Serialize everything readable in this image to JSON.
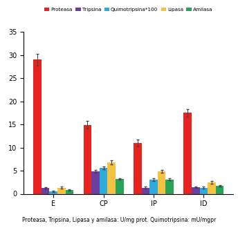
{
  "chart_data": {
    "type": "bar",
    "categories": [
      "E",
      "CP",
      "IP",
      "ID"
    ],
    "series": [
      {
        "name": "Proteasa",
        "color": "#e8231f",
        "values": [
          29.0,
          14.9,
          11.0,
          17.5
        ],
        "errors": [
          1.3,
          0.8,
          0.8,
          0.8
        ]
      },
      {
        "name": "Tripsina",
        "color": "#6a3fa0",
        "values": [
          1.2,
          4.9,
          1.3,
          1.4
        ],
        "errors": [
          0.2,
          0.3,
          0.2,
          0.2
        ]
      },
      {
        "name": "Quimotripsina*100",
        "color": "#2eaadc",
        "values": [
          0.5,
          5.6,
          3.1,
          1.3
        ],
        "errors": [
          0.1,
          0.3,
          0.3,
          0.2
        ]
      },
      {
        "name": "Lipasa",
        "color": "#f5c242",
        "values": [
          1.3,
          6.8,
          4.9,
          2.4
        ],
        "errors": [
          0.2,
          0.4,
          0.3,
          0.3
        ]
      },
      {
        "name": "Amilasa",
        "color": "#27a455",
        "values": [
          0.8,
          3.2,
          3.1,
          1.7
        ],
        "errors": [
          0.1,
          0.2,
          0.2,
          0.2
        ]
      }
    ],
    "ylim": [
      0,
      35
    ],
    "yticks": [
      0,
      5,
      10,
      15,
      20,
      25,
      30,
      35
    ],
    "legend": "upper center",
    "annotations": [
      "Proteasa, Tripsina, Lipasa y amilasa: U/mg prot. Quimotripsina: mU/mgpr"
    ]
  }
}
